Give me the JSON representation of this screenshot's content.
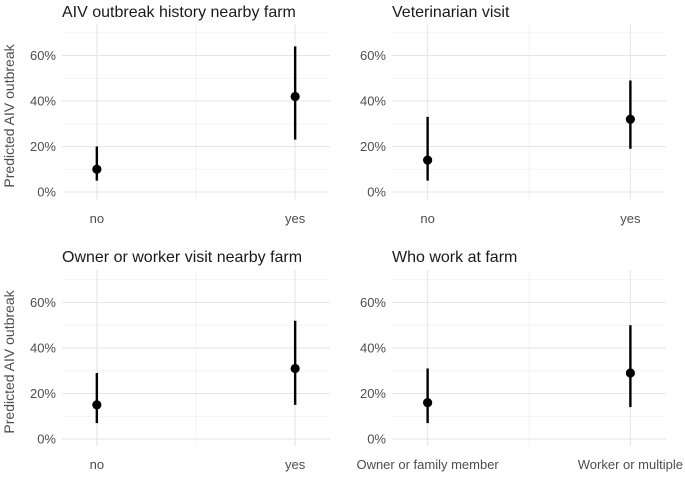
{
  "y_axis_label": "Predicted AIV outbreak",
  "chart_data": [
    {
      "type": "scatter",
      "title": "AIV outbreak history nearby farm",
      "categories": [
        "no",
        "yes"
      ],
      "values": [
        10,
        42
      ],
      "lower": [
        5,
        23
      ],
      "upper": [
        20,
        64
      ],
      "ylabel": "Predicted AIV outbreak",
      "ylim": [
        0,
        70
      ],
      "yticks": [
        "0%",
        "20%",
        "40%",
        "60%"
      ],
      "grid": true
    },
    {
      "type": "scatter",
      "title": "Veterinarian visit",
      "categories": [
        "no",
        "yes"
      ],
      "values": [
        14,
        32
      ],
      "lower": [
        5,
        19
      ],
      "upper": [
        33,
        49
      ],
      "ylabel": "",
      "ylim": [
        0,
        70
      ],
      "yticks": [
        "0%",
        "20%",
        "40%",
        "60%"
      ],
      "grid": true
    },
    {
      "type": "scatter",
      "title": "Owner or worker visit nearby farm",
      "categories": [
        "no",
        "yes"
      ],
      "values": [
        15,
        31
      ],
      "lower": [
        7,
        15
      ],
      "upper": [
        29,
        52
      ],
      "ylabel": "Predicted AIV outbreak",
      "ylim": [
        0,
        70
      ],
      "yticks": [
        "0%",
        "20%",
        "40%",
        "60%"
      ],
      "grid": true
    },
    {
      "type": "scatter",
      "title": "Who work at farm",
      "categories": [
        "Owner or family member",
        "Worker or multiple"
      ],
      "values": [
        16,
        29
      ],
      "lower": [
        7,
        14
      ],
      "upper": [
        31,
        50
      ],
      "ylabel": "",
      "ylim": [
        0,
        70
      ],
      "yticks": [
        "0%",
        "20%",
        "40%",
        "60%"
      ],
      "grid": true
    }
  ]
}
